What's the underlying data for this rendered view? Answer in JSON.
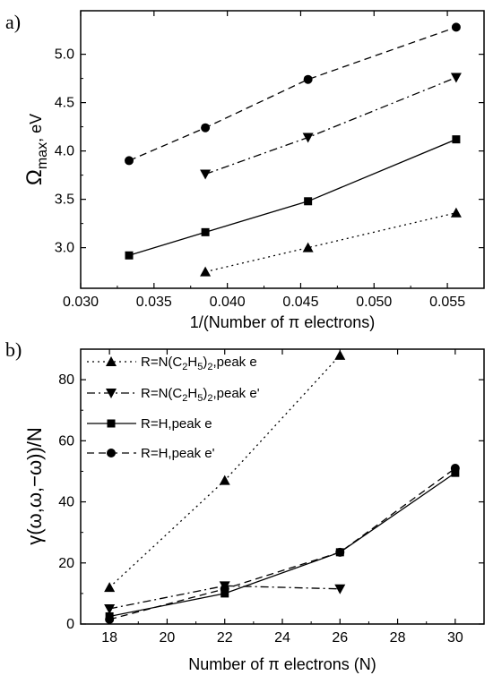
{
  "chart_data": [
    {
      "panel_label": "a)",
      "type": "line",
      "xlabel": "1/(Number of π electrons)",
      "ylabel_main": "Ω",
      "ylabel_sub": "max",
      "ylabel_tail": ", eV",
      "xlim": [
        0.03,
        0.0575
      ],
      "ylim": [
        2.58,
        5.45
      ],
      "xticks": [
        0.03,
        0.035,
        0.04,
        0.045,
        0.05,
        0.055
      ],
      "xtick_labels": [
        "0.030",
        "0.035",
        "0.040",
        "0.045",
        "0.050",
        "0.055"
      ],
      "yticks": [
        3.0,
        3.5,
        4.0,
        4.5,
        5.0
      ],
      "ytick_labels": [
        "3.0",
        "3.5",
        "4.0",
        "4.5",
        "5.0"
      ],
      "series": [
        {
          "marker": "circle",
          "dash": "8,5",
          "x": [
            0.0333,
            0.0385,
            0.0455,
            0.0556
          ],
          "y": [
            3.9,
            4.24,
            4.74,
            5.28
          ]
        },
        {
          "marker": "triangle-down",
          "dash": "9,4,2,4",
          "x": [
            0.0385,
            0.0455,
            0.0556
          ],
          "y": [
            3.76,
            4.14,
            4.76
          ]
        },
        {
          "marker": "square",
          "dash": "",
          "x": [
            0.0333,
            0.0385,
            0.0455,
            0.0556
          ],
          "y": [
            2.92,
            3.16,
            3.48,
            4.12
          ]
        },
        {
          "marker": "triangle-up",
          "dash": "2,4",
          "x": [
            0.0385,
            0.0455,
            0.0556
          ],
          "y": [
            2.75,
            3.0,
            3.36
          ]
        }
      ]
    },
    {
      "panel_label": "b)",
      "type": "line",
      "xlabel": "Number of π electrons (N)",
      "ylabel": "γ(ω,ω,−ω))/N",
      "xlim": [
        17,
        31
      ],
      "ylim": [
        0,
        90
      ],
      "xticks": [
        18,
        20,
        22,
        24,
        26,
        28,
        30
      ],
      "xtick_labels": [
        "18",
        "20",
        "22",
        "24",
        "26",
        "28",
        "30"
      ],
      "yticks": [
        0,
        20,
        40,
        60,
        80
      ],
      "ytick_labels": [
        "0",
        "20",
        "40",
        "60",
        "80"
      ],
      "legend_position": "top-left",
      "series": [
        {
          "name": "R=N(C2H5)2,peak e",
          "marker": "triangle-up",
          "dash": "2,4",
          "x": [
            18,
            22,
            26
          ],
          "y": [
            12,
            47,
            88
          ]
        },
        {
          "name": "R=N(C2H5)2,peak e'",
          "marker": "triangle-down",
          "dash": "9,4,2,4",
          "x": [
            18,
            22,
            26
          ],
          "y": [
            5,
            12.5,
            11.5
          ]
        },
        {
          "name": "R=H,peak e",
          "marker": "square",
          "dash": "",
          "x": [
            18,
            22,
            26,
            30
          ],
          "y": [
            2.5,
            10,
            23.5,
            49.5
          ]
        },
        {
          "name": "R=H,peak e'",
          "marker": "circle",
          "dash": "8,5",
          "x": [
            18,
            22,
            26,
            30
          ],
          "y": [
            1.5,
            11.5,
            23.5,
            51
          ]
        }
      ],
      "legend_items": [
        {
          "pre": "R=N(C",
          "sub1": "2",
          "mid": "H",
          "sub2": "5",
          "mid2": ")",
          "sub3": "2",
          "post": ",peak e"
        },
        {
          "pre": "R=N(C",
          "sub1": "2",
          "mid": "H",
          "sub2": "5",
          "mid2": ")",
          "sub3": "2",
          "post": ",peak e'"
        },
        {
          "pre": "R=H,peak e",
          "sub1": "",
          "mid": "",
          "sub2": "",
          "mid2": "",
          "sub3": "",
          "post": ""
        },
        {
          "pre": "R=H,peak e'",
          "sub1": "",
          "mid": "",
          "sub2": "",
          "mid2": "",
          "sub3": "",
          "post": ""
        }
      ]
    }
  ]
}
